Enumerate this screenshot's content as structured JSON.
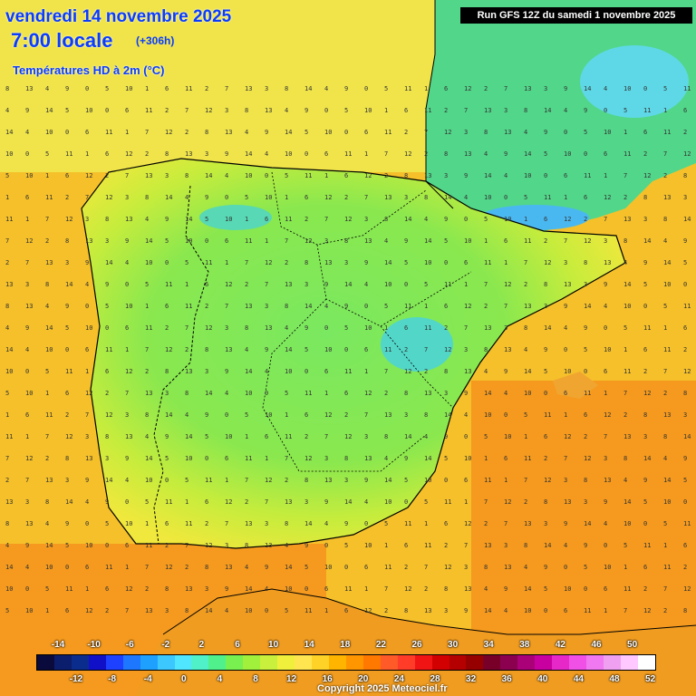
{
  "header": {
    "date": "vendredi 14 novembre 2025",
    "time": "7:00 locale",
    "lead": "(+306h)",
    "parameter": "Températures HD à 2m (°C)",
    "run": "Run GFS 12Z du samedi 1 novembre 2025"
  },
  "scale": {
    "upper_labels": [
      "-14",
      "-10",
      "-6",
      "-2",
      "2",
      "6",
      "10",
      "14",
      "18",
      "22",
      "26",
      "30",
      "34",
      "38",
      "42",
      "46",
      "50"
    ],
    "lower_labels": [
      "-12",
      "-8",
      "-4",
      "0",
      "4",
      "8",
      "12",
      "16",
      "20",
      "24",
      "28",
      "32",
      "36",
      "40",
      "44",
      "48",
      "52"
    ],
    "colors": [
      "#0a0a3c",
      "#0b1e6e",
      "#0a2c8c",
      "#1010c8",
      "#1e40ff",
      "#1e78ff",
      "#1ea0ff",
      "#3cc8ff",
      "#50e6ff",
      "#50f0c8",
      "#50f08c",
      "#78f050",
      "#a0f03c",
      "#c8f03c",
      "#f0f03c",
      "#ffe650",
      "#ffd228",
      "#ffb400",
      "#ff9600",
      "#ff7800",
      "#ff5a28",
      "#ff3c28",
      "#f01414",
      "#d20000",
      "#b40000",
      "#960000",
      "#780028",
      "#8c0050",
      "#aa0078",
      "#c800a0",
      "#e628c8",
      "#f050e6",
      "#f078f0",
      "#f0a0f0",
      "#ffc8ff",
      "#ffffff"
    ]
  },
  "map_labels": {
    "mini_values": [
      "14",
      "13",
      "12",
      "11",
      "10",
      "9",
      "8",
      "7",
      "6",
      "5",
      "4",
      "3",
      "2",
      "1",
      "0"
    ]
  },
  "copyright": "Copyright 2025 Meteociel.fr"
}
